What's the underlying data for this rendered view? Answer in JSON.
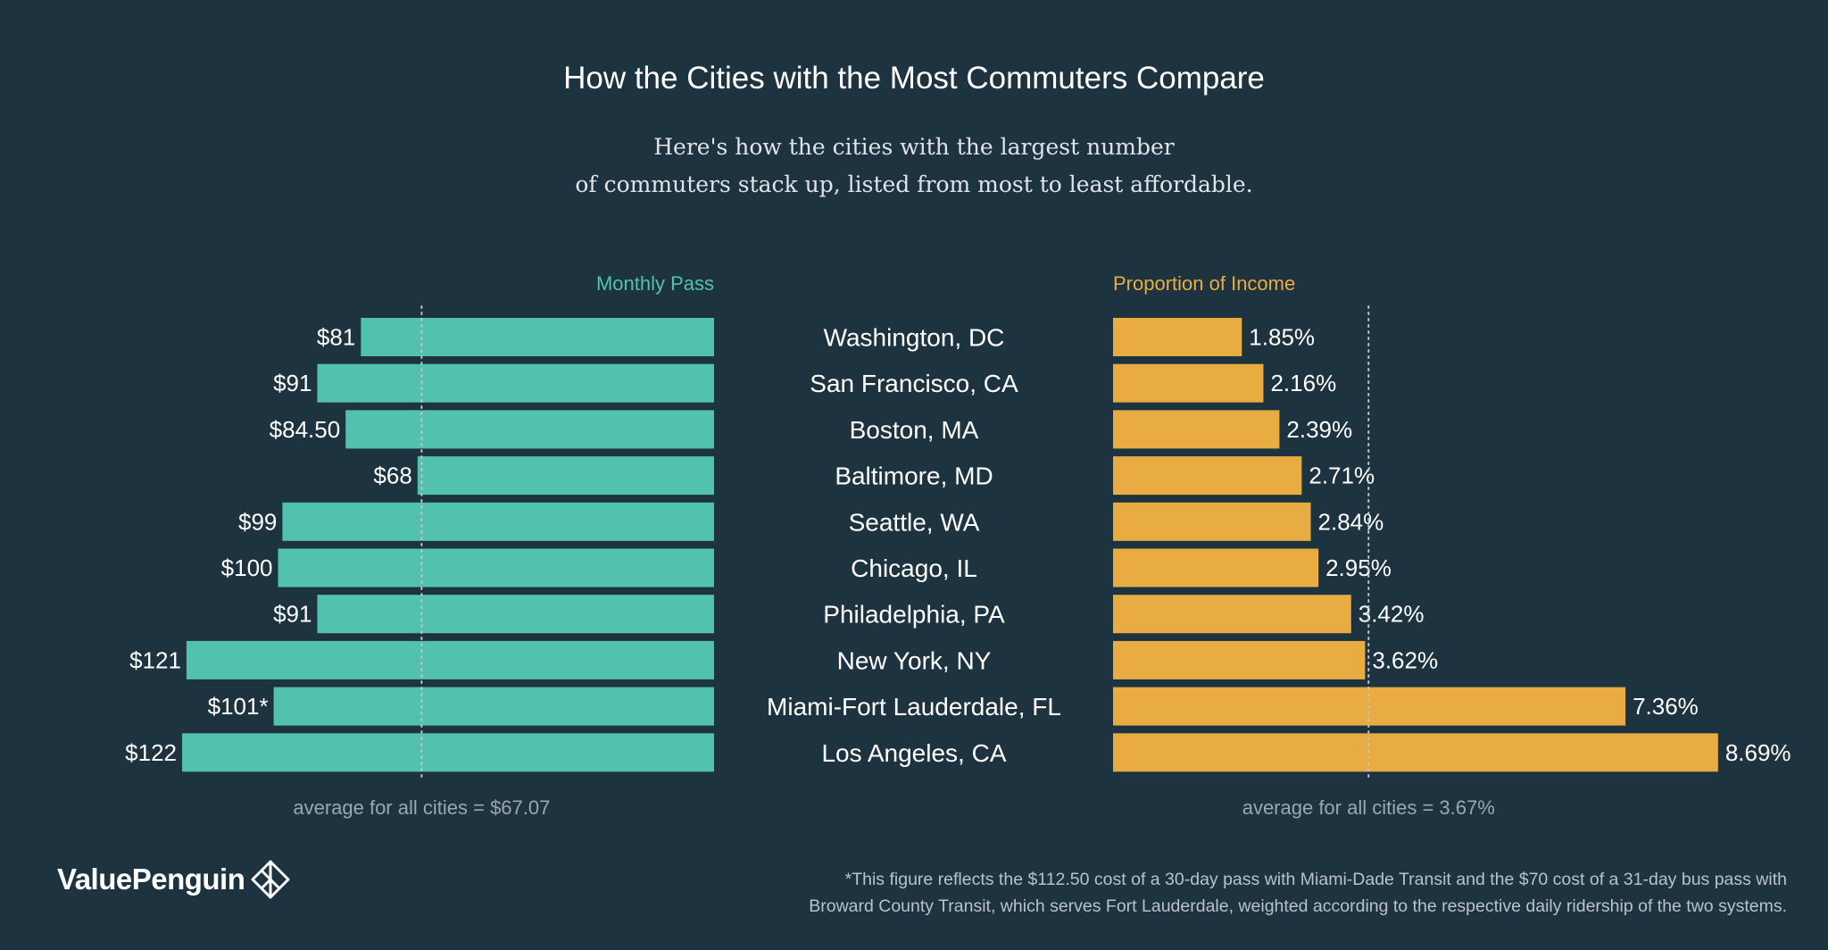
{
  "title": "How the Cities with the Most Commuters Compare",
  "subtitle": {
    "line1": "Here's how the cities with the largest number",
    "line2": "of commuters stack up, listed from most to least affordable."
  },
  "colors": {
    "background": "#1e3340",
    "pass_bar": "#52c2ae",
    "income_bar": "#e8ac42",
    "text": "#ffffff",
    "muted": "#9aa7ae"
  },
  "chart_data": {
    "type": "bar",
    "orientation": "horizontal",
    "categories": [
      "Washington, DC",
      "San Francisco, CA",
      "Boston, MA",
      "Baltimore, MD",
      "Seattle, WA",
      "Chicago, IL",
      "Philadelphia, PA",
      "New York, NY",
      "Miami-Fort Lauderdale, FL",
      "Los Angeles, CA"
    ],
    "series": [
      {
        "name": "Monthly Pass",
        "values": [
          81,
          91,
          84.5,
          68,
          99,
          100,
          91,
          121,
          101,
          122
        ],
        "labels": [
          "$81",
          "$91",
          "$84.50",
          "$68",
          "$99",
          "$100",
          "$91",
          "$121",
          "$101*",
          "$122"
        ],
        "average": 67.07,
        "average_label": "average for all cities = $67.07",
        "xlim": [
          0,
          130
        ]
      },
      {
        "name": "Proportion of Income",
        "values": [
          1.85,
          2.16,
          2.39,
          2.71,
          2.84,
          2.95,
          3.42,
          3.62,
          7.36,
          8.69
        ],
        "labels": [
          "1.85%",
          "2.16%",
          "2.39%",
          "2.71%",
          "2.84%",
          "2.95%",
          "3.42%",
          "3.62%",
          "7.36%",
          "8.69%"
        ],
        "average": 3.67,
        "average_label": "average for all cities = 3.67%",
        "xlim": [
          0,
          10
        ]
      }
    ]
  },
  "footnote": {
    "line1": "*This figure reflects the $112.50 cost of a 30-day pass with Miami-Dade Transit and the $70 cost of a 31-day bus pass with",
    "line2": "Broward County Transit, which serves Fort Lauderdale, weighted according to the respective daily ridership of the two systems."
  },
  "logo": {
    "text": "ValuePenguin",
    "icon": "penguin-diamond-icon"
  }
}
